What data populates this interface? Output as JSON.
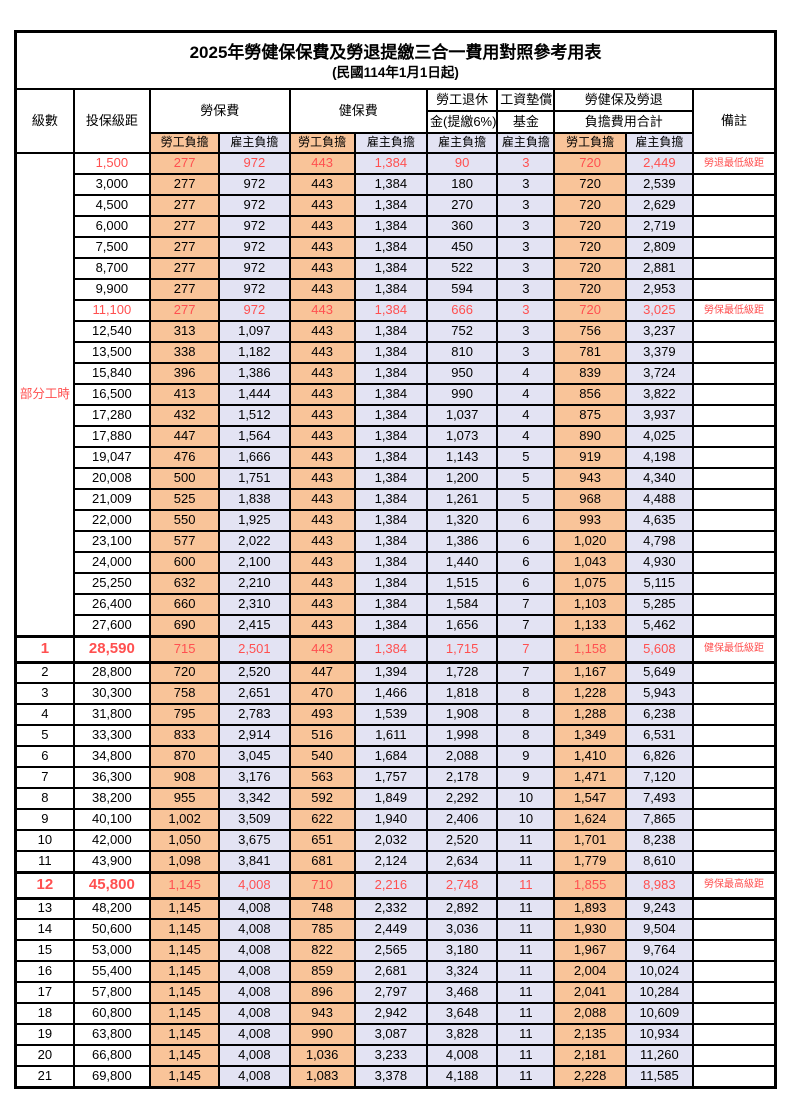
{
  "title": "2025年勞健保保費及勞退提繳三合一費用對照參考用表",
  "subtitle": "(民國114年1月1日起)",
  "colors": {
    "employee_col_bg": "#F9C499",
    "employer_col_bg": "#E3E3F3",
    "highlight_red": "#FF5050",
    "grid": "#000000"
  },
  "header": {
    "level": "級數",
    "bracket": "投保級距",
    "labor_insurance": "勞保費",
    "health_insurance": "健保費",
    "pension_line1": "勞工退休",
    "pension_line2": "金(提繳6%)",
    "wage_fund_line1": "工資墊償",
    "wage_fund_line2": "基金",
    "total_line1": "勞健保及勞退",
    "total_line2": "負擔費用合計",
    "remark": "備註",
    "employee_share": "勞工負擔",
    "employer_share": "雇主負擔"
  },
  "part_time_label": "部分工時",
  "part_time_rowspan": 23,
  "rows": [
    {
      "level": "",
      "bracket": "1,500",
      "li_emp": "277",
      "li_er": "972",
      "hi_emp": "443",
      "hi_er": "1,384",
      "pension": "90",
      "fund": "3",
      "sum_emp": "720",
      "sum_er": "2,449",
      "remark": "勞退最低級距",
      "red": true,
      "bold": false
    },
    {
      "level": "",
      "bracket": "3,000",
      "li_emp": "277",
      "li_er": "972",
      "hi_emp": "443",
      "hi_er": "1,384",
      "pension": "180",
      "fund": "3",
      "sum_emp": "720",
      "sum_er": "2,539",
      "remark": "",
      "red": false,
      "bold": false
    },
    {
      "level": "",
      "bracket": "4,500",
      "li_emp": "277",
      "li_er": "972",
      "hi_emp": "443",
      "hi_er": "1,384",
      "pension": "270",
      "fund": "3",
      "sum_emp": "720",
      "sum_er": "2,629",
      "remark": "",
      "red": false,
      "bold": false
    },
    {
      "level": "",
      "bracket": "6,000",
      "li_emp": "277",
      "li_er": "972",
      "hi_emp": "443",
      "hi_er": "1,384",
      "pension": "360",
      "fund": "3",
      "sum_emp": "720",
      "sum_er": "2,719",
      "remark": "",
      "red": false,
      "bold": false
    },
    {
      "level": "",
      "bracket": "7,500",
      "li_emp": "277",
      "li_er": "972",
      "hi_emp": "443",
      "hi_er": "1,384",
      "pension": "450",
      "fund": "3",
      "sum_emp": "720",
      "sum_er": "2,809",
      "remark": "",
      "red": false,
      "bold": false
    },
    {
      "level": "",
      "bracket": "8,700",
      "li_emp": "277",
      "li_er": "972",
      "hi_emp": "443",
      "hi_er": "1,384",
      "pension": "522",
      "fund": "3",
      "sum_emp": "720",
      "sum_er": "2,881",
      "remark": "",
      "red": false,
      "bold": false
    },
    {
      "level": "",
      "bracket": "9,900",
      "li_emp": "277",
      "li_er": "972",
      "hi_emp": "443",
      "hi_er": "1,384",
      "pension": "594",
      "fund": "3",
      "sum_emp": "720",
      "sum_er": "2,953",
      "remark": "",
      "red": false,
      "bold": false
    },
    {
      "level": "",
      "bracket": "11,100",
      "li_emp": "277",
      "li_er": "972",
      "hi_emp": "443",
      "hi_er": "1,384",
      "pension": "666",
      "fund": "3",
      "sum_emp": "720",
      "sum_er": "3,025",
      "remark": "勞保最低級距",
      "red": true,
      "bold": false
    },
    {
      "level": "",
      "bracket": "12,540",
      "li_emp": "313",
      "li_er": "1,097",
      "hi_emp": "443",
      "hi_er": "1,384",
      "pension": "752",
      "fund": "3",
      "sum_emp": "756",
      "sum_er": "3,237",
      "remark": "",
      "red": false,
      "bold": false
    },
    {
      "level": "",
      "bracket": "13,500",
      "li_emp": "338",
      "li_er": "1,182",
      "hi_emp": "443",
      "hi_er": "1,384",
      "pension": "810",
      "fund": "3",
      "sum_emp": "781",
      "sum_er": "3,379",
      "remark": "",
      "red": false,
      "bold": false
    },
    {
      "level": "",
      "bracket": "15,840",
      "li_emp": "396",
      "li_er": "1,386",
      "hi_emp": "443",
      "hi_er": "1,384",
      "pension": "950",
      "fund": "4",
      "sum_emp": "839",
      "sum_er": "3,724",
      "remark": "",
      "red": false,
      "bold": false
    },
    {
      "level": "",
      "bracket": "16,500",
      "li_emp": "413",
      "li_er": "1,444",
      "hi_emp": "443",
      "hi_er": "1,384",
      "pension": "990",
      "fund": "4",
      "sum_emp": "856",
      "sum_er": "3,822",
      "remark": "",
      "red": false,
      "bold": false
    },
    {
      "level": "",
      "bracket": "17,280",
      "li_emp": "432",
      "li_er": "1,512",
      "hi_emp": "443",
      "hi_er": "1,384",
      "pension": "1,037",
      "fund": "4",
      "sum_emp": "875",
      "sum_er": "3,937",
      "remark": "",
      "red": false,
      "bold": false
    },
    {
      "level": "",
      "bracket": "17,880",
      "li_emp": "447",
      "li_er": "1,564",
      "hi_emp": "443",
      "hi_er": "1,384",
      "pension": "1,073",
      "fund": "4",
      "sum_emp": "890",
      "sum_er": "4,025",
      "remark": "",
      "red": false,
      "bold": false
    },
    {
      "level": "",
      "bracket": "19,047",
      "li_emp": "476",
      "li_er": "1,666",
      "hi_emp": "443",
      "hi_er": "1,384",
      "pension": "1,143",
      "fund": "5",
      "sum_emp": "919",
      "sum_er": "4,198",
      "remark": "",
      "red": false,
      "bold": false
    },
    {
      "level": "",
      "bracket": "20,008",
      "li_emp": "500",
      "li_er": "1,751",
      "hi_emp": "443",
      "hi_er": "1,384",
      "pension": "1,200",
      "fund": "5",
      "sum_emp": "943",
      "sum_er": "4,340",
      "remark": "",
      "red": false,
      "bold": false
    },
    {
      "level": "",
      "bracket": "21,009",
      "li_emp": "525",
      "li_er": "1,838",
      "hi_emp": "443",
      "hi_er": "1,384",
      "pension": "1,261",
      "fund": "5",
      "sum_emp": "968",
      "sum_er": "4,488",
      "remark": "",
      "red": false,
      "bold": false
    },
    {
      "level": "",
      "bracket": "22,000",
      "li_emp": "550",
      "li_er": "1,925",
      "hi_emp": "443",
      "hi_er": "1,384",
      "pension": "1,320",
      "fund": "6",
      "sum_emp": "993",
      "sum_er": "4,635",
      "remark": "",
      "red": false,
      "bold": false
    },
    {
      "level": "",
      "bracket": "23,100",
      "li_emp": "577",
      "li_er": "2,022",
      "hi_emp": "443",
      "hi_er": "1,384",
      "pension": "1,386",
      "fund": "6",
      "sum_emp": "1,020",
      "sum_er": "4,798",
      "remark": "",
      "red": false,
      "bold": false
    },
    {
      "level": "",
      "bracket": "24,000",
      "li_emp": "600",
      "li_er": "2,100",
      "hi_emp": "443",
      "hi_er": "1,384",
      "pension": "1,440",
      "fund": "6",
      "sum_emp": "1,043",
      "sum_er": "4,930",
      "remark": "",
      "red": false,
      "bold": false
    },
    {
      "level": "",
      "bracket": "25,250",
      "li_emp": "632",
      "li_er": "2,210",
      "hi_emp": "443",
      "hi_er": "1,384",
      "pension": "1,515",
      "fund": "6",
      "sum_emp": "1,075",
      "sum_er": "5,115",
      "remark": "",
      "red": false,
      "bold": false
    },
    {
      "level": "",
      "bracket": "26,400",
      "li_emp": "660",
      "li_er": "2,310",
      "hi_emp": "443",
      "hi_er": "1,384",
      "pension": "1,584",
      "fund": "7",
      "sum_emp": "1,103",
      "sum_er": "5,285",
      "remark": "",
      "red": false,
      "bold": false
    },
    {
      "level": "",
      "bracket": "27,600",
      "li_emp": "690",
      "li_er": "2,415",
      "hi_emp": "443",
      "hi_er": "1,384",
      "pension": "1,656",
      "fund": "7",
      "sum_emp": "1,133",
      "sum_er": "5,462",
      "remark": "",
      "red": false,
      "bold": false
    },
    {
      "level": "1",
      "bracket": "28,590",
      "li_emp": "715",
      "li_er": "2,501",
      "hi_emp": "443",
      "hi_er": "1,384",
      "pension": "1,715",
      "fund": "7",
      "sum_emp": "1,158",
      "sum_er": "5,608",
      "remark": "健保最低級距",
      "red": true,
      "bold": true
    },
    {
      "level": "2",
      "bracket": "28,800",
      "li_emp": "720",
      "li_er": "2,520",
      "hi_emp": "447",
      "hi_er": "1,394",
      "pension": "1,728",
      "fund": "7",
      "sum_emp": "1,167",
      "sum_er": "5,649",
      "remark": "",
      "red": false,
      "bold": false
    },
    {
      "level": "3",
      "bracket": "30,300",
      "li_emp": "758",
      "li_er": "2,651",
      "hi_emp": "470",
      "hi_er": "1,466",
      "pension": "1,818",
      "fund": "8",
      "sum_emp": "1,228",
      "sum_er": "5,943",
      "remark": "",
      "red": false,
      "bold": false
    },
    {
      "level": "4",
      "bracket": "31,800",
      "li_emp": "795",
      "li_er": "2,783",
      "hi_emp": "493",
      "hi_er": "1,539",
      "pension": "1,908",
      "fund": "8",
      "sum_emp": "1,288",
      "sum_er": "6,238",
      "remark": "",
      "red": false,
      "bold": false
    },
    {
      "level": "5",
      "bracket": "33,300",
      "li_emp": "833",
      "li_er": "2,914",
      "hi_emp": "516",
      "hi_er": "1,611",
      "pension": "1,998",
      "fund": "8",
      "sum_emp": "1,349",
      "sum_er": "6,531",
      "remark": "",
      "red": false,
      "bold": false
    },
    {
      "level": "6",
      "bracket": "34,800",
      "li_emp": "870",
      "li_er": "3,045",
      "hi_emp": "540",
      "hi_er": "1,684",
      "pension": "2,088",
      "fund": "9",
      "sum_emp": "1,410",
      "sum_er": "6,826",
      "remark": "",
      "red": false,
      "bold": false
    },
    {
      "level": "7",
      "bracket": "36,300",
      "li_emp": "908",
      "li_er": "3,176",
      "hi_emp": "563",
      "hi_er": "1,757",
      "pension": "2,178",
      "fund": "9",
      "sum_emp": "1,471",
      "sum_er": "7,120",
      "remark": "",
      "red": false,
      "bold": false
    },
    {
      "level": "8",
      "bracket": "38,200",
      "li_emp": "955",
      "li_er": "3,342",
      "hi_emp": "592",
      "hi_er": "1,849",
      "pension": "2,292",
      "fund": "10",
      "sum_emp": "1,547",
      "sum_er": "7,493",
      "remark": "",
      "red": false,
      "bold": false
    },
    {
      "level": "9",
      "bracket": "40,100",
      "li_emp": "1,002",
      "li_er": "3,509",
      "hi_emp": "622",
      "hi_er": "1,940",
      "pension": "2,406",
      "fund": "10",
      "sum_emp": "1,624",
      "sum_er": "7,865",
      "remark": "",
      "red": false,
      "bold": false
    },
    {
      "level": "10",
      "bracket": "42,000",
      "li_emp": "1,050",
      "li_er": "3,675",
      "hi_emp": "651",
      "hi_er": "2,032",
      "pension": "2,520",
      "fund": "11",
      "sum_emp": "1,701",
      "sum_er": "8,238",
      "remark": "",
      "red": false,
      "bold": false
    },
    {
      "level": "11",
      "bracket": "43,900",
      "li_emp": "1,098",
      "li_er": "3,841",
      "hi_emp": "681",
      "hi_er": "2,124",
      "pension": "2,634",
      "fund": "11",
      "sum_emp": "1,779",
      "sum_er": "8,610",
      "remark": "",
      "red": false,
      "bold": false
    },
    {
      "level": "12",
      "bracket": "45,800",
      "li_emp": "1,145",
      "li_er": "4,008",
      "hi_emp": "710",
      "hi_er": "2,216",
      "pension": "2,748",
      "fund": "11",
      "sum_emp": "1,855",
      "sum_er": "8,983",
      "remark": "勞保最高級距",
      "red": true,
      "bold": true
    },
    {
      "level": "13",
      "bracket": "48,200",
      "li_emp": "1,145",
      "li_er": "4,008",
      "hi_emp": "748",
      "hi_er": "2,332",
      "pension": "2,892",
      "fund": "11",
      "sum_emp": "1,893",
      "sum_er": "9,243",
      "remark": "",
      "red": false,
      "bold": false
    },
    {
      "level": "14",
      "bracket": "50,600",
      "li_emp": "1,145",
      "li_er": "4,008",
      "hi_emp": "785",
      "hi_er": "2,449",
      "pension": "3,036",
      "fund": "11",
      "sum_emp": "1,930",
      "sum_er": "9,504",
      "remark": "",
      "red": false,
      "bold": false
    },
    {
      "level": "15",
      "bracket": "53,000",
      "li_emp": "1,145",
      "li_er": "4,008",
      "hi_emp": "822",
      "hi_er": "2,565",
      "pension": "3,180",
      "fund": "11",
      "sum_emp": "1,967",
      "sum_er": "9,764",
      "remark": "",
      "red": false,
      "bold": false
    },
    {
      "level": "16",
      "bracket": "55,400",
      "li_emp": "1,145",
      "li_er": "4,008",
      "hi_emp": "859",
      "hi_er": "2,681",
      "pension": "3,324",
      "fund": "11",
      "sum_emp": "2,004",
      "sum_er": "10,024",
      "remark": "",
      "red": false,
      "bold": false
    },
    {
      "level": "17",
      "bracket": "57,800",
      "li_emp": "1,145",
      "li_er": "4,008",
      "hi_emp": "896",
      "hi_er": "2,797",
      "pension": "3,468",
      "fund": "11",
      "sum_emp": "2,041",
      "sum_er": "10,284",
      "remark": "",
      "red": false,
      "bold": false
    },
    {
      "level": "18",
      "bracket": "60,800",
      "li_emp": "1,145",
      "li_er": "4,008",
      "hi_emp": "943",
      "hi_er": "2,942",
      "pension": "3,648",
      "fund": "11",
      "sum_emp": "2,088",
      "sum_er": "10,609",
      "remark": "",
      "red": false,
      "bold": false
    },
    {
      "level": "19",
      "bracket": "63,800",
      "li_emp": "1,145",
      "li_er": "4,008",
      "hi_emp": "990",
      "hi_er": "3,087",
      "pension": "3,828",
      "fund": "11",
      "sum_emp": "2,135",
      "sum_er": "10,934",
      "remark": "",
      "red": false,
      "bold": false
    },
    {
      "level": "20",
      "bracket": "66,800",
      "li_emp": "1,145",
      "li_er": "4,008",
      "hi_emp": "1,036",
      "hi_er": "3,233",
      "pension": "4,008",
      "fund": "11",
      "sum_emp": "2,181",
      "sum_er": "11,260",
      "remark": "",
      "red": false,
      "bold": false
    },
    {
      "level": "21",
      "bracket": "69,800",
      "li_emp": "1,145",
      "li_er": "4,008",
      "hi_emp": "1,083",
      "hi_er": "3,378",
      "pension": "4,188",
      "fund": "11",
      "sum_emp": "2,228",
      "sum_er": "11,585",
      "remark": "",
      "red": false,
      "bold": false
    }
  ]
}
